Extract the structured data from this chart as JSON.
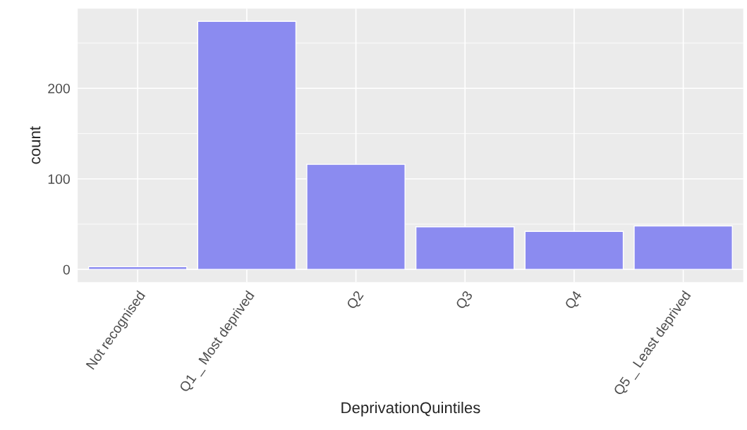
{
  "chart_data": {
    "type": "bar",
    "xlabel": "DeprivationQuintiles",
    "ylabel": "count",
    "categories": [
      "Not recognised",
      "Q1 _ Most deprived",
      "Q2",
      "Q3",
      "Q4",
      "Q5 _ Least deprived"
    ],
    "values": [
      3,
      274,
      116,
      47,
      42,
      48
    ],
    "color": "#8b8bf0",
    "ylim": [
      -14,
      288
    ],
    "yticks": [
      0,
      100,
      200
    ],
    "grid": true
  }
}
